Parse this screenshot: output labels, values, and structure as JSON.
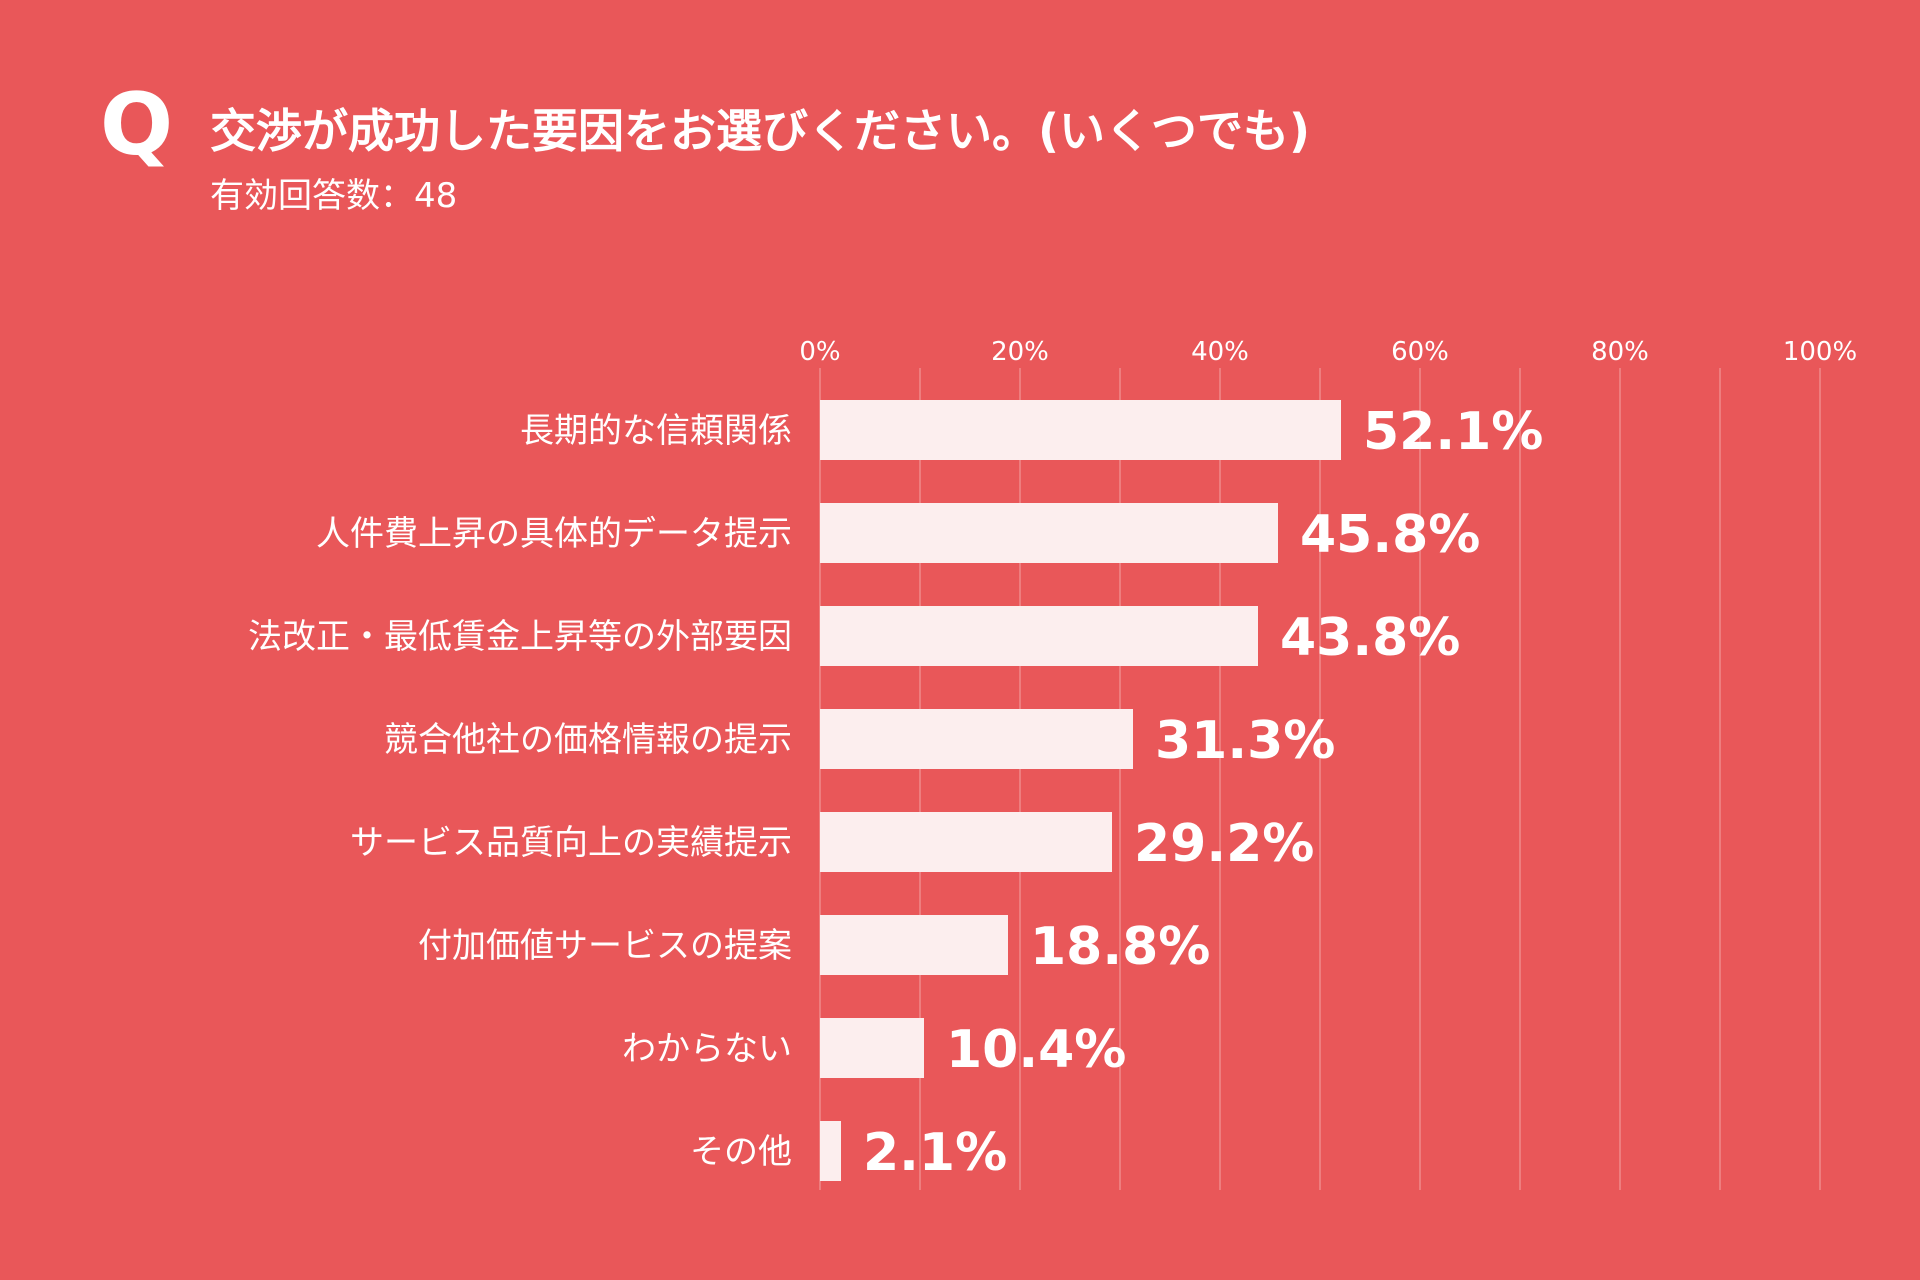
{
  "header": {
    "q_mark": "Q",
    "question": "交渉が成功した要因をお選びください。(いくつでも)",
    "respondents": "有効回答数：48"
  },
  "colors": {
    "background": "#E95759",
    "bar": "#FCEEEE",
    "gridline": "#F08A8B",
    "text": "#FFFFFF"
  },
  "chart_data": {
    "type": "bar",
    "orientation": "horizontal",
    "categories": [
      "長期的な信頼関係",
      "人件費上昇の具体的データ提示",
      "法改正・最低賃金上昇等の外部要因",
      "競合他社の価格情報の提示",
      "サービス品質向上の実績提示",
      "付加価値サービスの提案",
      "わからない",
      "その他"
    ],
    "values": [
      52.1,
      45.8,
      43.8,
      31.3,
      29.2,
      18.8,
      10.4,
      2.1
    ],
    "value_labels": [
      "52.1%",
      "45.8%",
      "43.8%",
      "31.3%",
      "29.2%",
      "18.8%",
      "10.4%",
      "2.1%"
    ],
    "xlim": [
      0,
      100
    ],
    "xticks": [
      0,
      20,
      40,
      60,
      80,
      100
    ],
    "xtick_labels": [
      "0%",
      "20%",
      "40%",
      "60%",
      "80%",
      "100%"
    ],
    "tick_position": "top",
    "grid": true,
    "legend": "none"
  }
}
